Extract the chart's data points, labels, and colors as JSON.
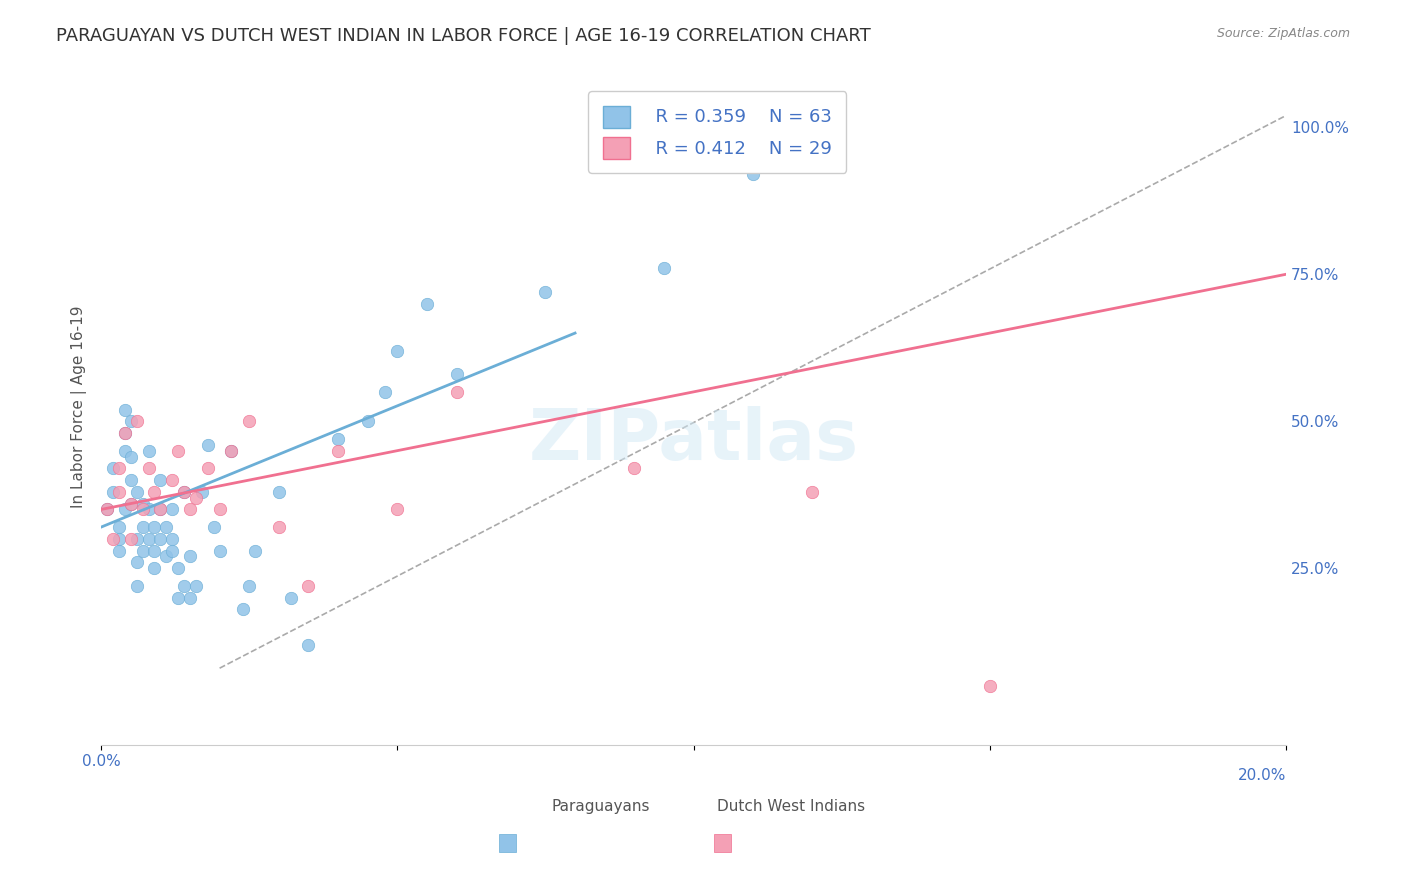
{
  "title": "PARAGUAYAN VS DUTCH WEST INDIAN IN LABOR FORCE | AGE 16-19 CORRELATION CHART",
  "source": "Source: ZipAtlas.com",
  "xlabel": "",
  "ylabel": "In Labor Force | Age 16-19",
  "x_min": 0.0,
  "x_max": 0.2,
  "y_min": -0.05,
  "y_max": 1.1,
  "x_ticks": [
    0.0,
    0.05,
    0.1,
    0.15,
    0.2
  ],
  "x_tick_labels": [
    "0.0%",
    "",
    "",
    "",
    "20.0%"
  ],
  "y_ticks_right": [
    0.25,
    0.5,
    0.75,
    1.0
  ],
  "y_tick_labels_right": [
    "25.0%",
    "50.0%",
    "75.0%",
    "100.0%"
  ],
  "blue_color": "#91C3E8",
  "pink_color": "#F4A0B5",
  "trend_blue": "#6BAED6",
  "trend_pink": "#F07090",
  "legend_blue_r": "R = 0.359",
  "legend_blue_n": "N = 63",
  "legend_pink_r": "R = 0.412",
  "legend_pink_n": "N = 29",
  "watermark": "ZIPatlas",
  "blue_scatter_x": [
    0.001,
    0.002,
    0.002,
    0.003,
    0.003,
    0.003,
    0.004,
    0.004,
    0.004,
    0.004,
    0.005,
    0.005,
    0.005,
    0.005,
    0.006,
    0.006,
    0.006,
    0.006,
    0.007,
    0.007,
    0.007,
    0.008,
    0.008,
    0.008,
    0.009,
    0.009,
    0.009,
    0.01,
    0.01,
    0.01,
    0.011,
    0.011,
    0.012,
    0.012,
    0.012,
    0.013,
    0.013,
    0.014,
    0.014,
    0.015,
    0.015,
    0.016,
    0.017,
    0.018,
    0.019,
    0.02,
    0.022,
    0.024,
    0.025,
    0.026,
    0.03,
    0.032,
    0.035,
    0.04,
    0.045,
    0.048,
    0.05,
    0.055,
    0.06,
    0.075,
    0.095,
    0.1,
    0.11
  ],
  "blue_scatter_y": [
    0.35,
    0.42,
    0.38,
    0.32,
    0.28,
    0.3,
    0.35,
    0.45,
    0.48,
    0.52,
    0.36,
    0.4,
    0.44,
    0.5,
    0.22,
    0.26,
    0.3,
    0.38,
    0.28,
    0.32,
    0.36,
    0.3,
    0.35,
    0.45,
    0.25,
    0.32,
    0.28,
    0.3,
    0.35,
    0.4,
    0.27,
    0.32,
    0.3,
    0.35,
    0.28,
    0.25,
    0.2,
    0.22,
    0.38,
    0.2,
    0.27,
    0.22,
    0.38,
    0.46,
    0.32,
    0.28,
    0.45,
    0.18,
    0.22,
    0.28,
    0.38,
    0.2,
    0.12,
    0.47,
    0.5,
    0.55,
    0.62,
    0.7,
    0.58,
    0.72,
    0.76,
    0.98,
    0.92
  ],
  "pink_scatter_x": [
    0.001,
    0.002,
    0.003,
    0.003,
    0.004,
    0.005,
    0.005,
    0.006,
    0.007,
    0.008,
    0.009,
    0.01,
    0.012,
    0.013,
    0.014,
    0.015,
    0.016,
    0.018,
    0.02,
    0.022,
    0.025,
    0.03,
    0.035,
    0.04,
    0.05,
    0.06,
    0.09,
    0.12,
    0.15
  ],
  "pink_scatter_y": [
    0.35,
    0.3,
    0.38,
    0.42,
    0.48,
    0.3,
    0.36,
    0.5,
    0.35,
    0.42,
    0.38,
    0.35,
    0.4,
    0.45,
    0.38,
    0.35,
    0.37,
    0.42,
    0.35,
    0.45,
    0.5,
    0.32,
    0.22,
    0.45,
    0.35,
    0.55,
    0.42,
    0.38,
    0.05
  ],
  "blue_trend_x": [
    0.0,
    0.08
  ],
  "blue_trend_y": [
    0.32,
    0.65
  ],
  "pink_trend_x": [
    0.0,
    0.2
  ],
  "pink_trend_y": [
    0.35,
    0.75
  ],
  "ref_line_x": [
    0.02,
    0.2
  ],
  "ref_line_y": [
    0.08,
    1.02
  ],
  "background_color": "#ffffff",
  "grid_color": "#cccccc",
  "axis_color": "#4472C4",
  "title_color": "#333333",
  "title_fontsize": 13,
  "axis_label_fontsize": 11,
  "tick_fontsize": 11
}
